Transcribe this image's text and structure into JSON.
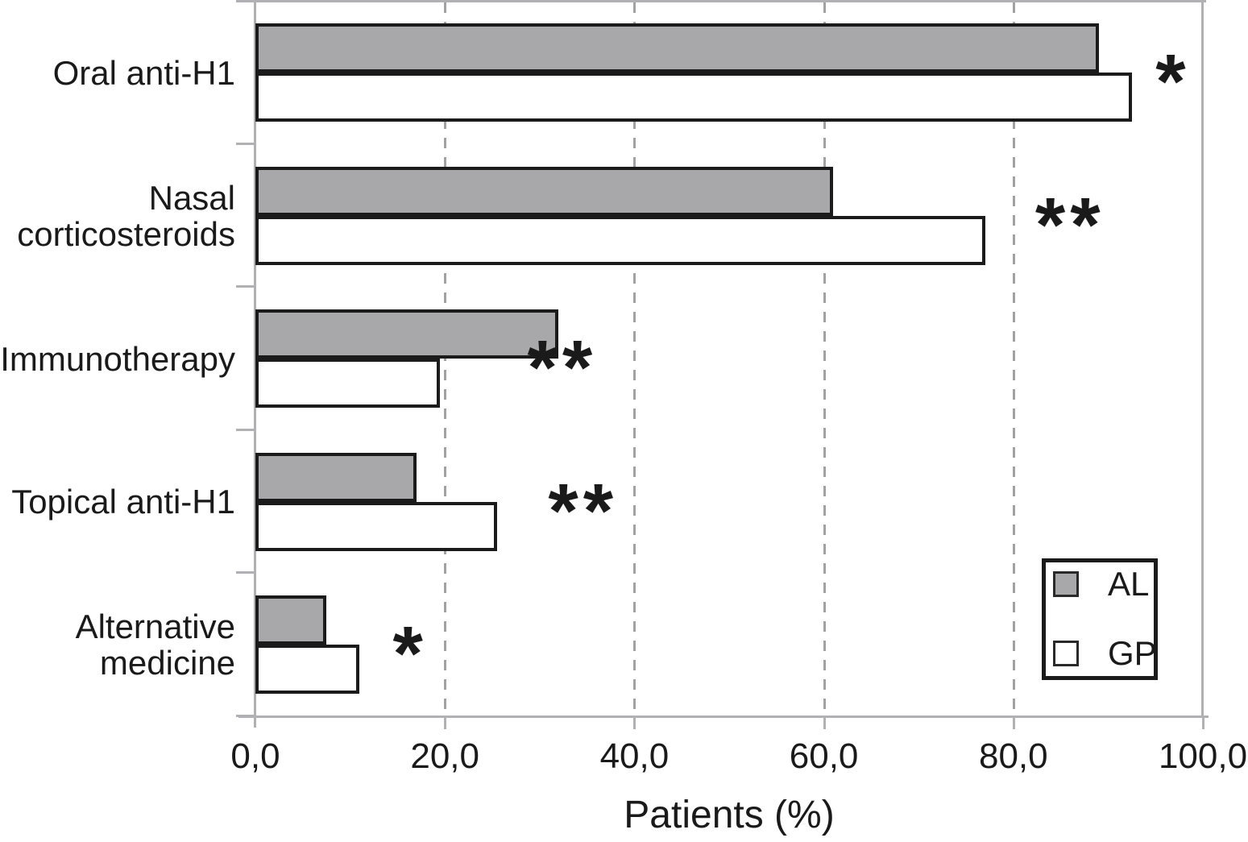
{
  "figure": {
    "background": "#ffffff"
  },
  "chart_data": {
    "type": "bar",
    "orientation": "horizontal",
    "title": "",
    "xlabel": "Patients (%)",
    "ylabel": "",
    "xlim": [
      0,
      100
    ],
    "xticks": [
      0,
      20,
      40,
      60,
      80,
      100
    ],
    "xtick_labels": [
      "0,0",
      "20,0",
      "40,0",
      "60,0",
      "80,0",
      "100,0"
    ],
    "grid": "vertical dashed gridlines at 20, 40, 60, 80",
    "categories": [
      "Oral anti-H1",
      "Nasal corticosteroids",
      "Immunotherapy",
      "Topical anti-H1",
      "Alternative medicine"
    ],
    "category_label_lines": [
      [
        "Oral anti-H1"
      ],
      [
        "Nasal",
        "corticosteroids"
      ],
      [
        "Immunotherapy"
      ],
      [
        "Topical anti-H1"
      ],
      [
        "Alternative",
        "medicine"
      ]
    ],
    "series": [
      {
        "name": "AL",
        "color": "#a8a8ab",
        "values": [
          89,
          61,
          32,
          17,
          7.5
        ]
      },
      {
        "name": "GP",
        "color": "#ffffff",
        "values": [
          92.5,
          77,
          19.5,
          25.5,
          11
        ]
      }
    ],
    "annotations": [
      {
        "text": "*",
        "category": "Oral anti-H1",
        "x_pct": 95.0
      },
      {
        "text": "**",
        "category": "Nasal corticosteroids",
        "x_pct": 82.3
      },
      {
        "text": "**",
        "category": "Immunotherapy",
        "x_pct": 28.7
      },
      {
        "text": "**",
        "category": "Topical anti-H1",
        "x_pct": 30.9
      },
      {
        "text": "*",
        "category": "Alternative medicine",
        "x_pct": 14.5
      }
    ],
    "legend": {
      "position": "lower right",
      "entries": [
        {
          "label": "AL",
          "color": "#a8a8ab"
        },
        {
          "label": "GP",
          "color": "#ffffff"
        }
      ]
    }
  },
  "colors": {
    "bar_border": "#1b1b1b",
    "axis": "#b1b1b4",
    "grid": "#a2a2a5",
    "text": "#1a1a1a"
  }
}
